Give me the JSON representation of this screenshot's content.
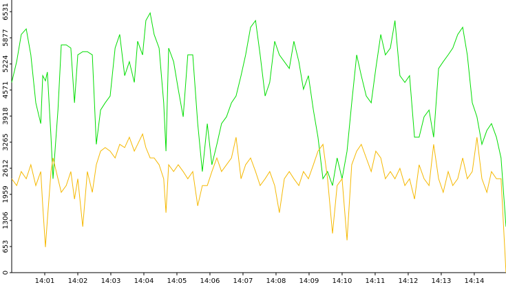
{
  "chart_data": {
    "type": "line",
    "x": [
      0,
      0.15,
      0.29,
      0.44,
      0.58,
      0.73,
      0.88,
      0.94,
      1.02,
      1.08,
      1.19,
      1.25,
      1.4,
      1.5,
      1.65,
      1.79,
      1.9,
      2,
      2.15,
      2.29,
      2.44,
      2.56,
      2.69,
      2.83,
      2.98,
      3.13,
      3.27,
      3.42,
      3.56,
      3.71,
      3.81,
      3.96,
      4.06,
      4.19,
      4.31,
      4.46,
      4.6,
      4.67,
      4.75,
      4.9,
      5.04,
      5.19,
      5.33,
      5.48,
      5.63,
      5.77,
      5.92,
      6.06,
      6.21,
      6.35,
      6.5,
      6.65,
      6.79,
      6.94,
      7.08,
      7.23,
      7.38,
      7.52,
      7.67,
      7.81,
      7.96,
      8.1,
      8.25,
      8.4,
      8.54,
      8.69,
      8.83,
      8.98,
      9.13,
      9.27,
      9.42,
      9.56,
      9.71,
      9.85,
      10,
      10.15,
      10.29,
      10.44,
      10.58,
      10.73,
      10.88,
      11.02,
      11.17,
      11.31,
      11.46,
      11.6,
      11.75,
      11.9,
      12.04,
      12.19,
      12.33,
      12.48,
      12.63,
      12.77,
      12.92,
      13.06,
      13.21,
      13.35,
      13.5,
      13.65,
      13.79,
      13.94,
      14.08,
      14.23,
      14.38,
      14.52,
      14.67,
      14.81,
      14.96
    ],
    "series": [
      {
        "color": "#00dd00",
        "values": [
          4760,
          5280,
          5960,
          6100,
          5450,
          4250,
          3730,
          4930,
          4800,
          5020,
          3390,
          2350,
          4070,
          5700,
          5700,
          5620,
          4250,
          5450,
          5530,
          5530,
          5450,
          3210,
          4070,
          4250,
          4420,
          5620,
          5960,
          4930,
          5280,
          4760,
          5790,
          5450,
          6310,
          6500,
          5960,
          5620,
          4250,
          3040,
          5620,
          5280,
          4590,
          3900,
          5450,
          5450,
          3730,
          2530,
          3730,
          2700,
          3210,
          3730,
          3900,
          4250,
          4420,
          4930,
          5450,
          6140,
          6310,
          5450,
          4420,
          4760,
          5790,
          5450,
          5280,
          5110,
          5790,
          5280,
          4590,
          4930,
          4070,
          3390,
          2350,
          2530,
          2180,
          2870,
          2350,
          3040,
          4250,
          5450,
          4930,
          4420,
          4250,
          5110,
          5960,
          5450,
          5620,
          6310,
          4930,
          4760,
          4930,
          3390,
          3390,
          3900,
          4070,
          3390,
          5110,
          5280,
          5450,
          5620,
          5960,
          6140,
          5450,
          4250,
          3900,
          3210,
          3560,
          3730,
          3390,
          2870,
          1150
        ]
      },
      {
        "color": "#f5b800",
        "values": [
          2350,
          2180,
          2530,
          2350,
          2700,
          2180,
          2530,
          1670,
          640,
          1320,
          2530,
          2870,
          2350,
          2010,
          2180,
          2530,
          1840,
          2350,
          1150,
          2530,
          2010,
          2700,
          3040,
          3130,
          3040,
          2870,
          3210,
          3130,
          3390,
          3040,
          3210,
          3470,
          3130,
          2870,
          2870,
          2700,
          2350,
          1500,
          2700,
          2530,
          2700,
          2530,
          2350,
          2530,
          1670,
          2180,
          2180,
          2530,
          2870,
          2530,
          2700,
          2870,
          3390,
          2350,
          2700,
          2870,
          2530,
          2180,
          2350,
          2530,
          2180,
          1500,
          2350,
          2530,
          2350,
          2180,
          2530,
          2350,
          2700,
          3040,
          3210,
          2350,
          980,
          2180,
          2350,
          810,
          2700,
          3040,
          3210,
          2870,
          2530,
          3040,
          2870,
          2350,
          2530,
          2350,
          2610,
          2180,
          2350,
          1840,
          2700,
          2350,
          2180,
          3210,
          2350,
          2010,
          2530,
          2180,
          2350,
          2870,
          2350,
          2530,
          3390,
          2350,
          2010,
          2530,
          2350,
          2350,
          0
        ]
      }
    ],
    "xlim": [
      0,
      14.96
    ],
    "xticks": [
      {
        "value": 1,
        "label": "14:01"
      },
      {
        "value": 2,
        "label": "14:02"
      },
      {
        "value": 3,
        "label": "14:03"
      },
      {
        "value": 4,
        "label": "14:04"
      },
      {
        "value": 5,
        "label": "14:05"
      },
      {
        "value": 6,
        "label": "14:06"
      },
      {
        "value": 7,
        "label": "14:07"
      },
      {
        "value": 8,
        "label": "14:08"
      },
      {
        "value": 9,
        "label": "14:09"
      },
      {
        "value": 10,
        "label": "14:10"
      },
      {
        "value": 11,
        "label": "14:11"
      },
      {
        "value": 12,
        "label": "14:12"
      },
      {
        "value": 13,
        "label": "14:13"
      },
      {
        "value": 14,
        "label": "14:14"
      }
    ],
    "ylim": [
      0,
      6531
    ],
    "yticks": [
      0,
      653,
      1306,
      1959,
      2612,
      3265,
      3918,
      4571,
      5224,
      5877,
      6531
    ]
  }
}
